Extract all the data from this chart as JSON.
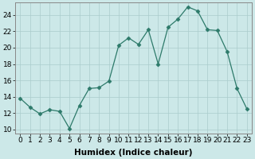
{
  "x": [
    0,
    1,
    2,
    3,
    4,
    5,
    6,
    7,
    8,
    9,
    10,
    11,
    12,
    13,
    14,
    15,
    16,
    17,
    18,
    19,
    20,
    21,
    22,
    23
  ],
  "y": [
    13.8,
    12.7,
    11.9,
    12.4,
    12.2,
    10.1,
    12.9,
    15.0,
    15.1,
    15.9,
    20.3,
    21.2,
    20.4,
    22.2,
    18.0,
    22.5,
    23.5,
    25.0,
    24.5,
    22.2,
    22.1,
    19.5,
    15.0,
    12.5
  ],
  "xlabel": "Humidex (Indice chaleur)",
  "xlim": [
    -0.5,
    23.5
  ],
  "ylim": [
    9.5,
    25.5
  ],
  "yticks": [
    10,
    12,
    14,
    16,
    18,
    20,
    22,
    24
  ],
  "xticks": [
    0,
    1,
    2,
    3,
    4,
    5,
    6,
    7,
    8,
    9,
    10,
    11,
    12,
    13,
    14,
    15,
    16,
    17,
    18,
    19,
    20,
    21,
    22,
    23
  ],
  "line_color": "#2d7a6a",
  "marker": "D",
  "marker_size": 2.5,
  "bg_color": "#cce8e8",
  "grid_color": "#aacccc",
  "tick_label_fontsize": 6.5,
  "xlabel_fontsize": 7.5
}
